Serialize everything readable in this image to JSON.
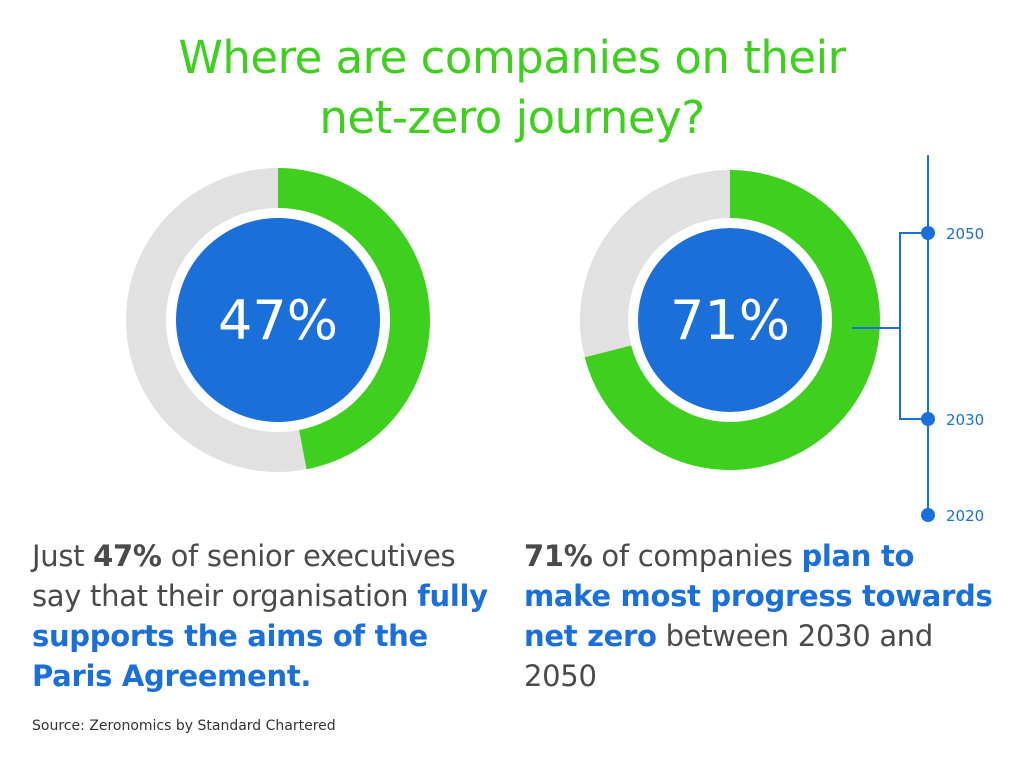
{
  "title": {
    "line1": "Where are companies on their",
    "line2": "net-zero journey?"
  },
  "colors": {
    "accent_green": "#3ecf1f",
    "accent_blue": "#1a6fd8",
    "track_gray": "#e1e1e1",
    "text_gray": "#4a4a4a"
  },
  "chart_data": [
    {
      "type": "pie",
      "variant": "donut",
      "center_label": "47%",
      "slices": [
        {
          "label": "",
          "value": 47,
          "color": "#3ecf1f"
        },
        {
          "label": "",
          "value": 53,
          "color": "#e1e1e1"
        }
      ]
    },
    {
      "type": "pie",
      "variant": "donut",
      "center_label": "71%",
      "slices": [
        {
          "label": "",
          "value": 71,
          "color": "#3ecf1f"
        },
        {
          "label": "",
          "value": 29,
          "color": "#e1e1e1"
        }
      ],
      "timeline": {
        "orientation": "vertical",
        "markers": [
          "2050",
          "2030",
          "2020"
        ],
        "bracket": [
          "2050",
          "2030"
        ]
      }
    }
  ],
  "captions": {
    "left": {
      "p1": "Just ",
      "p2": "47%",
      "p3": " of senior executives say that their organisation ",
      "p4": "fully supports the aims of the Paris Agreement."
    },
    "right": {
      "p1": "71%",
      "p2": " of companies ",
      "p3": "plan to make most progress towards net zero",
      "p4": " between 2030 and 2050"
    }
  },
  "source": "Source: Zeronomics by Standard Chartered"
}
